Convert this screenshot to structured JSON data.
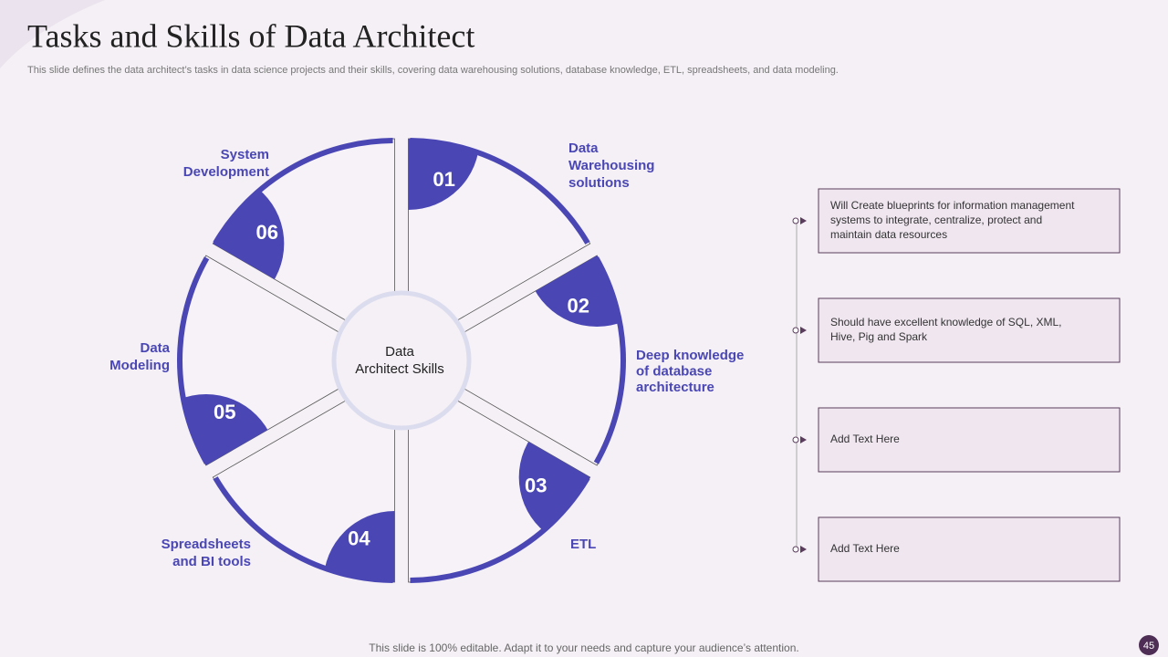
{
  "header": {
    "title": "Tasks and Skills of Data Architect",
    "subtitle": "This slide defines the data architect’s tasks in data science projects and their skills, covering data warehousing solutions, database knowledge, ETL, spreadsheets, and data modeling."
  },
  "center_label": [
    "Data",
    "Architect Skills"
  ],
  "segments": [
    {
      "number": "01",
      "label": [
        "Data",
        "Warehousing",
        "solutions"
      ]
    },
    {
      "number": "02",
      "label": [
        "Deep knowledge",
        "of database",
        "architecture"
      ]
    },
    {
      "number": "03",
      "label": [
        "ETL"
      ]
    },
    {
      "number": "04",
      "label": [
        "Spreadsheets",
        "and BI tools"
      ]
    },
    {
      "number": "05",
      "label": [
        "Data",
        "Modeling"
      ]
    },
    {
      "number": "06",
      "label": [
        "System",
        "Development"
      ]
    }
  ],
  "boxes": [
    [
      "Will Create blueprints for information management",
      "systems to integrate, centralize, protect and",
      "maintain data resources"
    ],
    [
      "Should have excellent knowledge of SQL, XML,",
      "Hive, Pig and Spark"
    ],
    [
      "Add Text Here"
    ],
    [
      "Add Text Here"
    ]
  ],
  "footer": "This slide is 100% editable. Adapt it to your needs and capture your audience’s attention.",
  "page_number": "45"
}
